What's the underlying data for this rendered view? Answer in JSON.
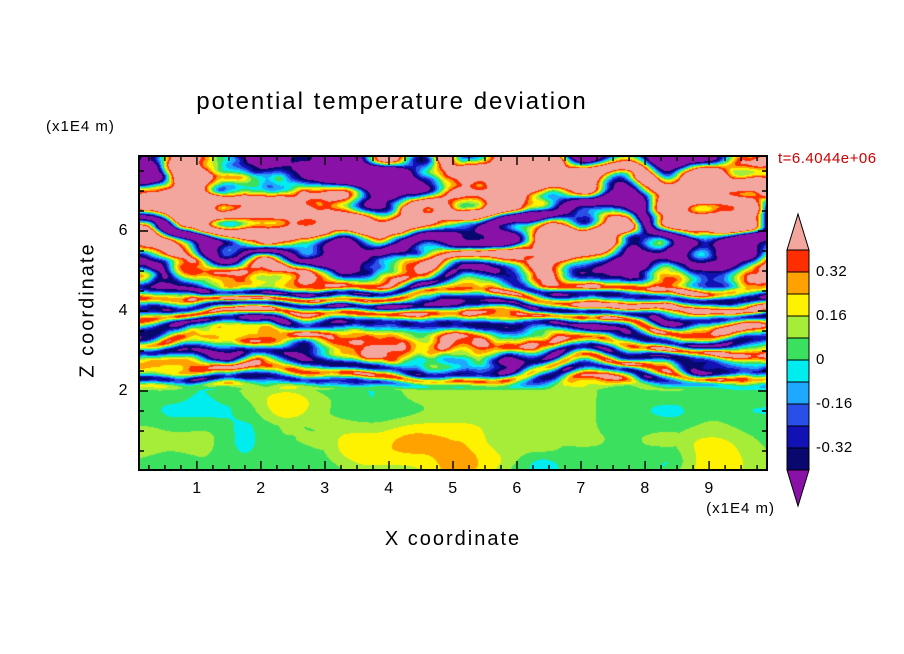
{
  "title": "potential temperature deviation",
  "timestamp": {
    "text": "t=6.4044e+06",
    "color": "#CC0000"
  },
  "axes": {
    "x": {
      "label": "X coordinate",
      "unit": "(x1E4 m)",
      "ticks": [
        "1",
        "2",
        "3",
        "4",
        "5",
        "6",
        "7",
        "8",
        "9"
      ],
      "major_values": [
        1,
        2,
        3,
        4,
        5,
        6,
        7,
        8,
        9
      ],
      "minor_step": 0.25
    },
    "y": {
      "label": "Z coordinate",
      "unit": "(x1E4 m)",
      "ticks": [
        "2",
        "4",
        "6"
      ],
      "major_values": [
        2,
        4,
        6
      ],
      "minor_step": 0.5
    }
  },
  "colorbar": {
    "min": -0.4,
    "max": 0.4,
    "step": 0.08,
    "labels": [
      "0.32",
      "0.16",
      "0",
      "-0.16",
      "-0.32"
    ],
    "label_values": [
      0.32,
      0.16,
      0,
      -0.16,
      -0.32
    ]
  },
  "chart_data": {
    "type": "heatmap",
    "title": "potential temperature deviation",
    "xlabel": "X coordinate (x1E4 m)",
    "ylabel": "Z coordinate (x1E4 m)",
    "time_annotation": "t=6.4044e+06",
    "xlim": [
      0.08,
      9.92
    ],
    "ylim": [
      0,
      7.9
    ],
    "contour_levels": [
      -0.4,
      -0.32,
      -0.24,
      -0.16,
      -0.08,
      0,
      0.08,
      0.16,
      0.24,
      0.32,
      0.4
    ],
    "band_colors_low_to_high": [
      "#8A11A8",
      "#08086E",
      "#1111B4",
      "#2A4FE6",
      "#1EA8FF",
      "#00EDF0",
      "#3CE05F",
      "#A6ED3A",
      "#FFF200",
      "#FFA200",
      "#FF2E00",
      "#F2A69E"
    ],
    "regions": [
      {
        "z_range": [
          0,
          2
        ],
        "description": "quiescent near-zero layer, mostly green with light-green patches and thin cyan wisps near its top"
      },
      {
        "z_range": [
          2,
          4.6
        ],
        "description": "fine-scale turbulent layering, thin alternating red/orange/yellow and cyan/blue/navy streaks"
      },
      {
        "z_range": [
          4.6,
          7.9
        ],
        "description": "broad strong layers, wide salmon-pink (>0.32) and dark purple (<-0.32) bands with red/orange/cyan edges"
      }
    ],
    "field_model": {
      "quiescent_top_z": 2.0,
      "transition_width": 0.35,
      "mid": {
        "amplitude": 0.38,
        "layers_per_unit": 1.7
      },
      "upper": {
        "amplitude": 0.66,
        "layers_per_unit": 0.55,
        "start_z": 4.6,
        "blend": 1.4
      },
      "noise_amps": [
        0.16,
        0.08
      ],
      "quiescent": {
        "base": 0.045,
        "noise_amp": 0.07
      }
    }
  }
}
